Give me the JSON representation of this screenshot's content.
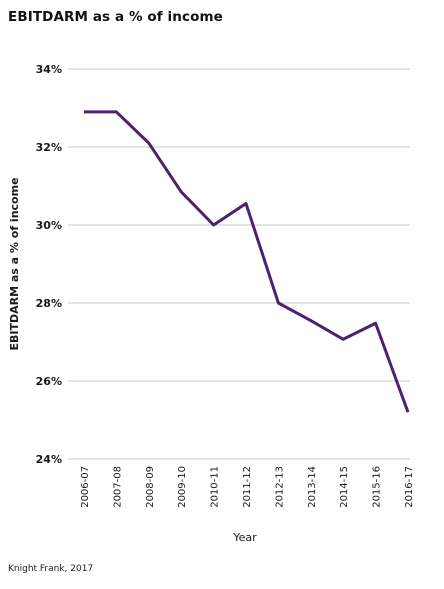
{
  "chart_data": {
    "type": "line",
    "title": "EBITDARM as a % of income",
    "xlabel": "Year",
    "ylabel": "EBITDARM as a % of income",
    "source": "Knight Frank, 2017",
    "categories": [
      "2006-07",
      "2007-08",
      "2008-09",
      "2009-10",
      "2010-11",
      "2011-12",
      "2012-13",
      "2013-14",
      "2014-15",
      "2015-16",
      "2016-17"
    ],
    "series": [
      {
        "name": "",
        "values": [
          32.9,
          32.9,
          32.1,
          30.85,
          30.0,
          30.55,
          28.0,
          27.55,
          27.07,
          27.48,
          25.2
        ]
      }
    ],
    "ylim": [
      24,
      34
    ],
    "yticks": [
      24,
      26,
      28,
      30,
      32,
      34
    ],
    "ytick_labels": [
      "24%",
      "26%",
      "28%",
      "30%",
      "32%",
      "34%"
    ],
    "grid": true,
    "legend": "none",
    "line_color": "#4b2273",
    "grid_color": "#c8c8c8"
  }
}
